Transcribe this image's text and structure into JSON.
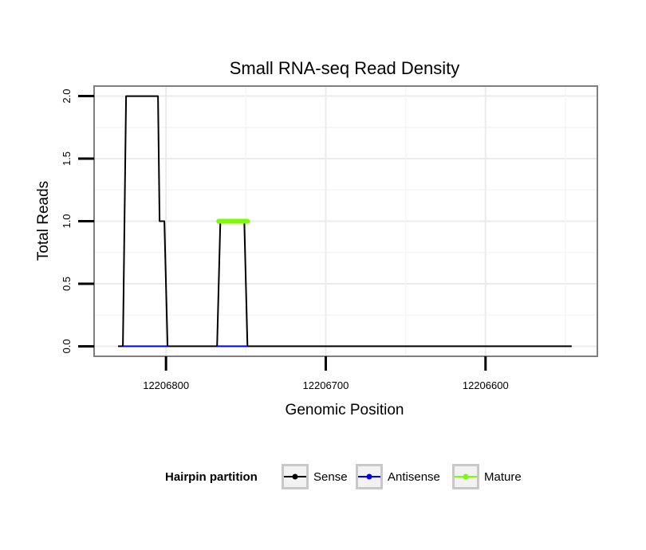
{
  "chart_data": {
    "type": "line",
    "title": "Small RNA-seq Read Density",
    "xlabel": "Genomic Position",
    "ylabel": "Total Reads",
    "x_reversed": true,
    "xlim": [
      12206845,
      12206530
    ],
    "ylim": [
      -0.08,
      2.08
    ],
    "x_ticks": [
      12206800,
      12206700,
      12206600
    ],
    "x_tick_labels": [
      "12206800",
      "12206700",
      "12206600"
    ],
    "y_ticks": [
      0,
      0.5,
      1,
      1.5,
      2
    ],
    "y_tick_labels": [
      "0.0",
      "0.5",
      "1.0",
      "1.5",
      "2.0"
    ],
    "grid": true,
    "series": [
      {
        "name": "Sense",
        "color": "#000000",
        "x": [
          12206830,
          12206827,
          12206825,
          12206805,
          12206804,
          12206802,
          12206801,
          12206799,
          12206797,
          12206797,
          12206768,
          12206766,
          12206751,
          12206749,
          12206747,
          12206546
        ],
        "y": [
          0,
          0,
          2,
          2,
          1,
          1,
          1,
          0,
          0,
          0,
          0,
          1,
          1,
          0,
          0,
          0
        ]
      },
      {
        "name": "Antisense",
        "color": "#0000ff",
        "x": [
          12206827,
          12206799,
          12206768,
          12206749
        ],
        "y": [
          0,
          0,
          0,
          0
        ],
        "segments": [
          [
            0,
            1
          ],
          [
            2,
            3
          ]
        ]
      },
      {
        "name": "Mature",
        "color": "#7cfc00",
        "x": [
          12206767,
          12206749
        ],
        "y": [
          1,
          1
        ]
      }
    ],
    "legend": {
      "title": "Hairpin partition",
      "placement": "bottom",
      "items": [
        {
          "label": "Sense",
          "color": "#000000"
        },
        {
          "label": "Antisense",
          "color": "#0000ff"
        },
        {
          "label": "Mature",
          "color": "#7cfc00"
        }
      ]
    }
  }
}
